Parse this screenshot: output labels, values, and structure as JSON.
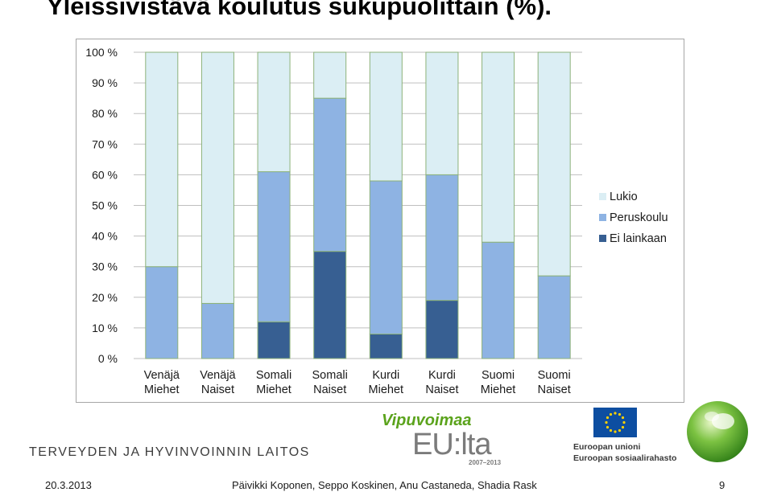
{
  "slide": {
    "title": "Yleissivistävä koulutus sukupuolittain (%).",
    "organization": "TERVEYDEN JA HYVINVOINNIN LAITOS",
    "footer_date": "20.3.2013",
    "footer_authors": "Päivikki Koponen, Seppo Koskinen, Anu Castaneda, Shadia Rask",
    "page_number": "9"
  },
  "logos": {
    "vipuvoimaa_title": "Vipuvoimaa",
    "vipuvoimaa_eu": "EU:lta",
    "vipuvoimaa_years": "2007–2013",
    "eu_line1": "Euroopan unioni",
    "eu_line2": "Euroopan sosiaalirahasto"
  },
  "chart_data": {
    "type": "bar",
    "stacked": true,
    "categories": [
      [
        "Venäjä",
        "Miehet"
      ],
      [
        "Venäjä",
        "Naiset"
      ],
      [
        "Somali",
        "Miehet"
      ],
      [
        "Somali",
        "Naiset"
      ],
      [
        "Kurdi",
        "Miehet"
      ],
      [
        "Kurdi",
        "Naiset"
      ],
      [
        "Suomi",
        "Miehet"
      ],
      [
        "Suomi",
        "Naiset"
      ]
    ],
    "series": [
      {
        "name": "Ei lainkaan",
        "color": "#375f92",
        "values": [
          0,
          0,
          12,
          35,
          8,
          19,
          0,
          0
        ]
      },
      {
        "name": "Peruskoulu",
        "color": "#8eb3e3",
        "values": [
          30,
          18,
          49,
          50,
          50,
          41,
          38,
          27
        ]
      },
      {
        "name": "Lukio",
        "color": "#dbeef4",
        "values": [
          70,
          82,
          39,
          15,
          42,
          40,
          62,
          73
        ]
      }
    ],
    "legend_order": [
      "Lukio",
      "Peruskoulu",
      "Ei lainkaan"
    ],
    "yticks": [
      "0 %",
      "10 %",
      "20 %",
      "30 %",
      "40 %",
      "50 %",
      "60 %",
      "70 %",
      "80 %",
      "90 %",
      "100 %"
    ],
    "ylim": [
      0,
      100
    ],
    "grid": true,
    "legend_position": "right",
    "bar_border_color": "#8db27a",
    "grid_color": "#bfbfbf"
  }
}
